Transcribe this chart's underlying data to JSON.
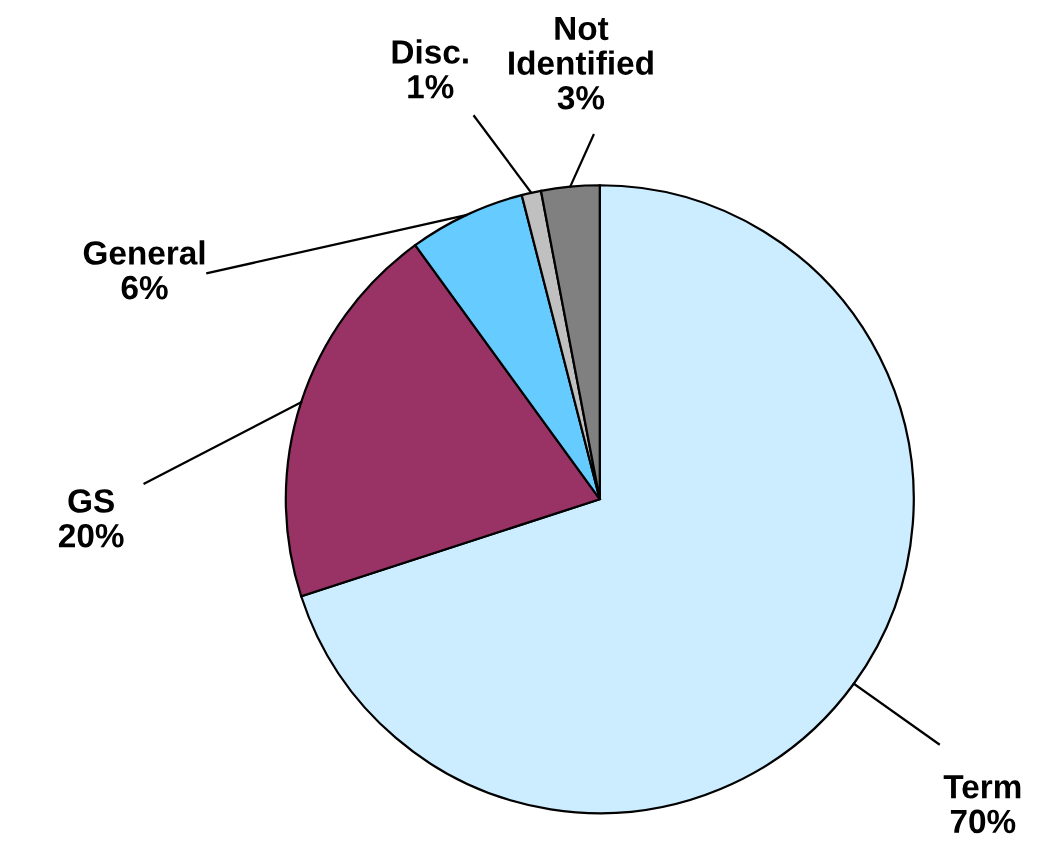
{
  "chart_data": {
    "type": "pie",
    "categories": [
      "Term",
      "GS",
      "General",
      "Disc.",
      "Not Identified"
    ],
    "values": [
      70,
      20,
      6,
      1,
      3
    ],
    "value_labels": [
      "70%",
      "20%",
      "6%",
      "1%",
      "3%"
    ],
    "colors": [
      "#ccecff",
      "#993366",
      "#66ccff",
      "#c0c0c0",
      "#808080"
    ]
  }
}
